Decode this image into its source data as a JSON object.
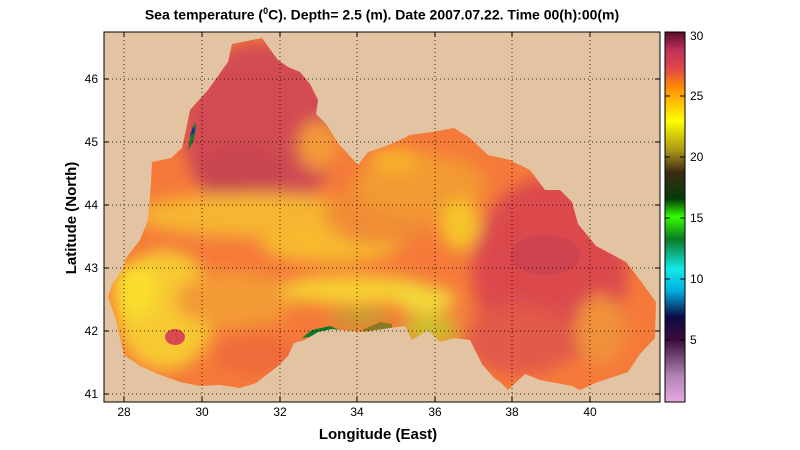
{
  "title": {
    "prefix": "Sea temperature (",
    "superscript": "0",
    "suffix": "C). Depth=  2.5 (m). Date 2007.07.22. Time 00(h):00(m)"
  },
  "map": {
    "x_label": "Longitude (East)",
    "y_label": "Latitude (North)",
    "x_ticks": [
      "28",
      "30",
      "32",
      "34",
      "36",
      "38",
      "40"
    ],
    "y_ticks": [
      "41",
      "42",
      "43",
      "44",
      "45",
      "46"
    ],
    "x_range": [
      27.45,
      41.75
    ],
    "y_range": [
      40.85,
      46.7
    ],
    "land_color": "#e3c4a2",
    "grid": "dotted"
  },
  "colorbar": {
    "ticks": [
      "5",
      "10",
      "15",
      "20",
      "25",
      "30"
    ],
    "range": [
      0,
      30
    ],
    "colors": [
      "#e7a8e2",
      "#b184b4",
      "#3a0b3a",
      "#0d0a45",
      "#00aee0",
      "#12e9e8",
      "#0a7a24",
      "#33ff00",
      "#053a0b",
      "#3c2a15",
      "#aa9616",
      "#ffff00",
      "#ffcc00",
      "#ff8c00",
      "#e0484a",
      "#c0325a",
      "#5a0f2a"
    ]
  }
}
